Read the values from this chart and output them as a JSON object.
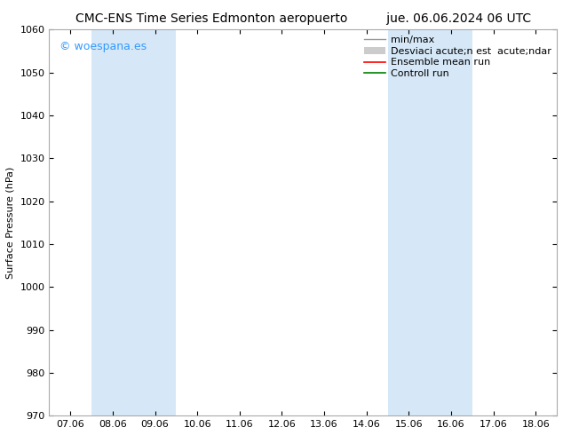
{
  "title_left": "CMC-ENS Time Series Edmonton aeropuerto",
  "title_right": "jue. 06.06.2024 06 UTC",
  "ylabel": "Surface Pressure (hPa)",
  "ylim": [
    970,
    1060
  ],
  "yticks": [
    970,
    980,
    990,
    1000,
    1010,
    1020,
    1030,
    1040,
    1050,
    1060
  ],
  "xtick_labels": [
    "07.06",
    "08.06",
    "09.06",
    "10.06",
    "11.06",
    "12.06",
    "13.06",
    "14.06",
    "15.06",
    "16.06",
    "17.06",
    "18.06"
  ],
  "xtick_positions": [
    0,
    1,
    2,
    3,
    4,
    5,
    6,
    7,
    8,
    9,
    10,
    11
  ],
  "xlim": [
    -0.5,
    11.5
  ],
  "shade_regions": [
    {
      "xmin": 0.5,
      "xmax": 2.5,
      "color": "#d6e8f7"
    },
    {
      "xmin": 7.5,
      "xmax": 9.5,
      "color": "#d6e8f7"
    }
  ],
  "watermark_text": "© woespana.es",
  "watermark_color": "#3399ff",
  "legend_labels": [
    "min/max",
    "Desviaci acute;n est  acute;ndar",
    "Ensemble mean run",
    "Controll run"
  ],
  "legend_colors_line": [
    "#999999",
    "#cccccc",
    "#ff0000",
    "#008000"
  ],
  "legend_patch": [
    false,
    true,
    false,
    false
  ],
  "bg_color": "#ffffff",
  "plot_bg_color": "#ffffff",
  "spine_color": "#aaaaaa",
  "font_size": 8,
  "title_font_size": 10
}
